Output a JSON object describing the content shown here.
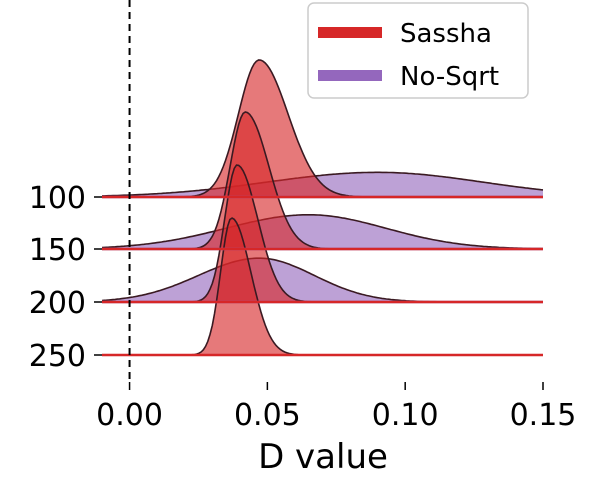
{
  "chart_data": {
    "type": "area",
    "subtype": "ridgeline",
    "xlabel": "D value",
    "ylabel": "",
    "xlim": [
      -0.01,
      0.15
    ],
    "x_ticks": [
      "0.00",
      "0.05",
      "0.10",
      "0.15"
    ],
    "x_tick_values": [
      0.0,
      0.05,
      0.1,
      0.15
    ],
    "reference_line": {
      "x": 0.0,
      "style": "dashed"
    },
    "rows": [
      "100",
      "150",
      "200",
      "250"
    ],
    "legend": {
      "placement": "top-right"
    },
    "series": [
      {
        "name": "Sassha",
        "color": "#d62728",
        "distributions": [
          {
            "row": "100",
            "mode": 0.047,
            "sd_left": 0.0075,
            "sd_right": 0.0105,
            "relative_peak": 1.0
          },
          {
            "row": "150",
            "mode": 0.042,
            "sd_left": 0.0055,
            "sd_right": 0.0085,
            "relative_peak": 1.0
          },
          {
            "row": "200",
            "mode": 0.039,
            "sd_left": 0.0045,
            "sd_right": 0.0075,
            "relative_peak": 1.0
          },
          {
            "row": "250",
            "mode": 0.037,
            "sd_left": 0.004,
            "sd_right": 0.007,
            "relative_peak": 1.0
          }
        ]
      },
      {
        "name": "No-Sqrt",
        "color": "#9467bd",
        "distributions": [
          {
            "row": "100",
            "mode": 0.09,
            "sd_left": 0.04,
            "sd_right": 0.038,
            "relative_peak": 0.18
          },
          {
            "row": "150",
            "mode": 0.065,
            "sd_left": 0.03,
            "sd_right": 0.028,
            "relative_peak": 0.25
          },
          {
            "row": "200",
            "mode": 0.047,
            "sd_left": 0.022,
            "sd_right": 0.02,
            "relative_peak": 0.32
          }
        ]
      }
    ]
  }
}
